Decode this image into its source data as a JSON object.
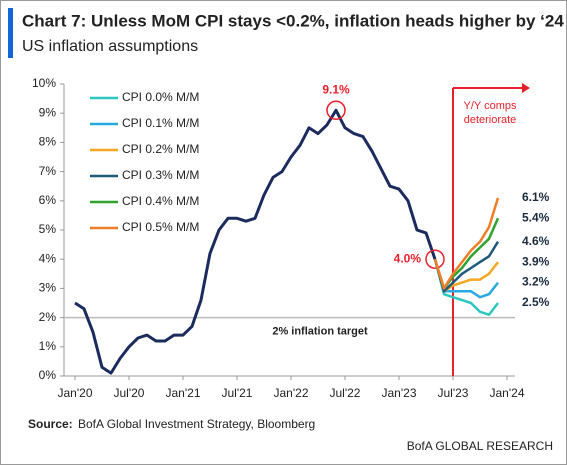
{
  "chart_data": {
    "type": "line",
    "title": "Chart 7: Unless MoM CPI stays <0.2%, inflation heads higher by ‘24",
    "subtitle": "US inflation assumptions",
    "x": [
      "2020-01",
      "2020-02",
      "2020-03",
      "2020-04",
      "2020-05",
      "2020-06",
      "2020-07",
      "2020-08",
      "2020-09",
      "2020-10",
      "2020-11",
      "2020-12",
      "2021-01",
      "2021-02",
      "2021-03",
      "2021-04",
      "2021-05",
      "2021-06",
      "2021-07",
      "2021-08",
      "2021-09",
      "2021-10",
      "2021-11",
      "2021-12",
      "2022-01",
      "2022-02",
      "2022-03",
      "2022-04",
      "2022-05",
      "2022-06",
      "2022-07",
      "2022-08",
      "2022-09",
      "2022-10",
      "2022-11",
      "2022-12",
      "2023-01",
      "2023-02",
      "2023-03",
      "2023-04",
      "2023-05",
      "2023-06",
      "2023-07",
      "2023-08",
      "2023-09",
      "2023-10",
      "2023-11",
      "2023-12"
    ],
    "series": [
      {
        "color": "#1b2b5e",
        "values": [
          2.5,
          2.3,
          1.5,
          0.3,
          0.1,
          0.6,
          1.0,
          1.3,
          1.4,
          1.2,
          1.2,
          1.4,
          1.4,
          1.7,
          2.6,
          4.2,
          5.0,
          5.4,
          5.4,
          5.3,
          5.4,
          6.2,
          6.8,
          7.0,
          7.5,
          7.9,
          8.5,
          8.3,
          8.6,
          9.1,
          8.5,
          8.3,
          8.2,
          7.7,
          7.1,
          6.5,
          6.4,
          6.0,
          5.0,
          4.9,
          4.0,
          null,
          null,
          null,
          null,
          null,
          null,
          null
        ],
        "value_labels": [
          null,
          null,
          null,
          null,
          null,
          null,
          null,
          null,
          null,
          null,
          null,
          null,
          null,
          null,
          null,
          null,
          null,
          null,
          null,
          null,
          null,
          null,
          null,
          null,
          null,
          null,
          null,
          null,
          null,
          "9.1%",
          null,
          null,
          null,
          null,
          null,
          null,
          null,
          null,
          null,
          null,
          "4.0%",
          null,
          null,
          null,
          null,
          null,
          null,
          null
        ]
      },
      {
        "name": "CPI 0.0% M/M",
        "color": "#2cc7c0",
        "values": [
          null,
          null,
          null,
          null,
          null,
          null,
          null,
          null,
          null,
          null,
          null,
          null,
          null,
          null,
          null,
          null,
          null,
          null,
          null,
          null,
          null,
          null,
          null,
          null,
          null,
          null,
          null,
          null,
          null,
          null,
          null,
          null,
          null,
          null,
          null,
          null,
          null,
          null,
          null,
          null,
          4.0,
          2.8,
          2.7,
          2.6,
          2.5,
          2.2,
          2.1,
          2.5
        ],
        "value_labels": [
          null,
          null,
          null,
          null,
          null,
          null,
          null,
          null,
          null,
          null,
          null,
          null,
          null,
          null,
          null,
          null,
          null,
          null,
          null,
          null,
          null,
          null,
          null,
          null,
          null,
          null,
          null,
          null,
          null,
          null,
          null,
          null,
          null,
          null,
          null,
          null,
          null,
          null,
          null,
          null,
          null,
          null,
          null,
          null,
          null,
          null,
          null,
          "2.5%"
        ]
      },
      {
        "name": "CPI 0.1% M/M",
        "color": "#29a9e1",
        "values": [
          null,
          null,
          null,
          null,
          null,
          null,
          null,
          null,
          null,
          null,
          null,
          null,
          null,
          null,
          null,
          null,
          null,
          null,
          null,
          null,
          null,
          null,
          null,
          null,
          null,
          null,
          null,
          null,
          null,
          null,
          null,
          null,
          null,
          null,
          null,
          null,
          null,
          null,
          null,
          null,
          4.0,
          2.9,
          2.9,
          2.9,
          2.9,
          2.7,
          2.8,
          3.2
        ],
        "value_labels": [
          null,
          null,
          null,
          null,
          null,
          null,
          null,
          null,
          null,
          null,
          null,
          null,
          null,
          null,
          null,
          null,
          null,
          null,
          null,
          null,
          null,
          null,
          null,
          null,
          null,
          null,
          null,
          null,
          null,
          null,
          null,
          null,
          null,
          null,
          null,
          null,
          null,
          null,
          null,
          null,
          null,
          null,
          null,
          null,
          null,
          null,
          null,
          "3.2%"
        ]
      },
      {
        "name": "CPI 0.2% M/M",
        "color": "#f5a623",
        "values": [
          null,
          null,
          null,
          null,
          null,
          null,
          null,
          null,
          null,
          null,
          null,
          null,
          null,
          null,
          null,
          null,
          null,
          null,
          null,
          null,
          null,
          null,
          null,
          null,
          null,
          null,
          null,
          null,
          null,
          null,
          null,
          null,
          null,
          null,
          null,
          null,
          null,
          null,
          null,
          null,
          4.0,
          2.9,
          3.1,
          3.2,
          3.3,
          3.3,
          3.5,
          3.9
        ],
        "value_labels": [
          null,
          null,
          null,
          null,
          null,
          null,
          null,
          null,
          null,
          null,
          null,
          null,
          null,
          null,
          null,
          null,
          null,
          null,
          null,
          null,
          null,
          null,
          null,
          null,
          null,
          null,
          null,
          null,
          null,
          null,
          null,
          null,
          null,
          null,
          null,
          null,
          null,
          null,
          null,
          null,
          null,
          null,
          null,
          null,
          null,
          null,
          null,
          "3.9%"
        ]
      },
      {
        "name": "CPI 0.3% M/M",
        "color": "#1f5a7e",
        "values": [
          null,
          null,
          null,
          null,
          null,
          null,
          null,
          null,
          null,
          null,
          null,
          null,
          null,
          null,
          null,
          null,
          null,
          null,
          null,
          null,
          null,
          null,
          null,
          null,
          null,
          null,
          null,
          null,
          null,
          null,
          null,
          null,
          null,
          null,
          null,
          null,
          null,
          null,
          null,
          null,
          4.0,
          2.9,
          3.2,
          3.5,
          3.7,
          3.9,
          4.1,
          4.6
        ],
        "value_labels": [
          null,
          null,
          null,
          null,
          null,
          null,
          null,
          null,
          null,
          null,
          null,
          null,
          null,
          null,
          null,
          null,
          null,
          null,
          null,
          null,
          null,
          null,
          null,
          null,
          null,
          null,
          null,
          null,
          null,
          null,
          null,
          null,
          null,
          null,
          null,
          null,
          null,
          null,
          null,
          null,
          null,
          null,
          null,
          null,
          null,
          null,
          null,
          "4.6%"
        ]
      },
      {
        "name": "CPI 0.4% M/M",
        "color": "#2ea32e",
        "values": [
          null,
          null,
          null,
          null,
          null,
          null,
          null,
          null,
          null,
          null,
          null,
          null,
          null,
          null,
          null,
          null,
          null,
          null,
          null,
          null,
          null,
          null,
          null,
          null,
          null,
          null,
          null,
          null,
          null,
          null,
          null,
          null,
          null,
          null,
          null,
          null,
          null,
          null,
          null,
          null,
          4.0,
          3.0,
          3.4,
          3.7,
          4.1,
          4.4,
          4.7,
          5.4
        ],
        "value_labels": [
          null,
          null,
          null,
          null,
          null,
          null,
          null,
          null,
          null,
          null,
          null,
          null,
          null,
          null,
          null,
          null,
          null,
          null,
          null,
          null,
          null,
          null,
          null,
          null,
          null,
          null,
          null,
          null,
          null,
          null,
          null,
          null,
          null,
          null,
          null,
          null,
          null,
          null,
          null,
          null,
          null,
          null,
          null,
          null,
          null,
          null,
          null,
          "5.4%"
        ]
      },
      {
        "name": "CPI 0.5% M/M",
        "color": "#f07d28",
        "values": [
          null,
          null,
          null,
          null,
          null,
          null,
          null,
          null,
          null,
          null,
          null,
          null,
          null,
          null,
          null,
          null,
          null,
          null,
          null,
          null,
          null,
          null,
          null,
          null,
          null,
          null,
          null,
          null,
          null,
          null,
          null,
          null,
          null,
          null,
          null,
          null,
          null,
          null,
          null,
          null,
          4.0,
          3.0,
          3.5,
          3.9,
          4.3,
          4.6,
          5.1,
          6.1
        ],
        "value_labels": [
          null,
          null,
          null,
          null,
          null,
          null,
          null,
          null,
          null,
          null,
          null,
          null,
          null,
          null,
          null,
          null,
          null,
          null,
          null,
          null,
          null,
          null,
          null,
          null,
          null,
          null,
          null,
          null,
          null,
          null,
          null,
          null,
          null,
          null,
          null,
          null,
          null,
          null,
          null,
          null,
          null,
          null,
          null,
          null,
          null,
          null,
          null,
          "6.1%"
        ]
      }
    ],
    "xlim": [
      "2020-01",
      "2024-01"
    ],
    "xticks": [
      {
        "value": "2020-01",
        "label": "Jan'20"
      },
      {
        "value": "2020-07",
        "label": "Jul'20"
      },
      {
        "value": "2021-01",
        "label": "Jan'21"
      },
      {
        "value": "2021-07",
        "label": "Jul'21"
      },
      {
        "value": "2022-01",
        "label": "Jan'22"
      },
      {
        "value": "2022-07",
        "label": "Jul'22"
      },
      {
        "value": "2023-01",
        "label": "Jan'23"
      },
      {
        "value": "2023-07",
        "label": "Jul'23"
      },
      {
        "value": "2024-01",
        "label": "Jan'24"
      }
    ],
    "ylim": [
      0,
      10
    ],
    "yticks": [
      {
        "value": 0,
        "label": "0%"
      },
      {
        "value": 1,
        "label": "1%"
      },
      {
        "value": 2,
        "label": "2%"
      },
      {
        "value": 3,
        "label": "3%"
      },
      {
        "value": 4,
        "label": "4%"
      },
      {
        "value": 5,
        "label": "5%"
      },
      {
        "value": 6,
        "label": "6%"
      },
      {
        "value": 7,
        "label": "7%"
      },
      {
        "value": 8,
        "label": "8%"
      },
      {
        "value": 9,
        "label": "9%"
      },
      {
        "value": 10,
        "label": "10%"
      }
    ],
    "hline": {
      "value": 2,
      "label": "2% inflation target",
      "color": "#bbbbbb"
    },
    "vline": {
      "x": "2023-07",
      "label": [
        "Y/Y comps",
        "deteriorate"
      ],
      "color": "#e8202a"
    },
    "legend": "upper left",
    "source": {
      "label": "Source:",
      "text": "BofA Global Investment Strategy, Bloomberg"
    },
    "footer": "BofA GLOBAL RESEARCH"
  }
}
